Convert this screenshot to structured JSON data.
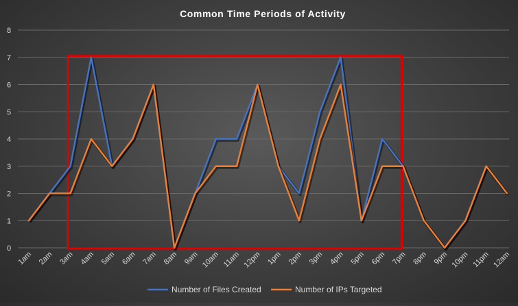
{
  "chart_data": {
    "type": "line",
    "title": "Common Time Periods of Activity",
    "categories": [
      "1am",
      "2am",
      "3am",
      "4am",
      "5am",
      "6am",
      "7am",
      "8am",
      "9am",
      "10am",
      "11am",
      "12pm",
      "1pm",
      "2pm",
      "3pm",
      "4pm",
      "5pm",
      "6pm",
      "7pm",
      "8pm",
      "9pm",
      "10pm",
      "11pm",
      "12am"
    ],
    "series": [
      {
        "name": "Number of Files Created",
        "color": "#4472c4",
        "values": [
          1,
          2,
          3,
          7,
          3,
          4,
          6,
          0,
          2,
          4,
          4,
          6,
          3,
          2,
          5,
          7,
          1,
          4,
          3,
          1,
          0,
          1,
          3,
          2
        ]
      },
      {
        "name": "Number of IPs Targeted",
        "color": "#ed7d31",
        "values": [
          1,
          2,
          2,
          4,
          3,
          4,
          6,
          0,
          2,
          3,
          3,
          6,
          3,
          1,
          4,
          6,
          1,
          3,
          3,
          1,
          0,
          1,
          3,
          2
        ]
      }
    ],
    "ylim": [
      0,
      8
    ],
    "yticks": [
      "0",
      "1",
      "2",
      "3",
      "4",
      "5",
      "6",
      "7",
      "8"
    ],
    "grid": true,
    "legend_position": "bottom",
    "highlight": {
      "color": "#e00000",
      "from_category": "3am",
      "to_category": "7pm",
      "y_from": 0,
      "y_to": 7
    }
  }
}
